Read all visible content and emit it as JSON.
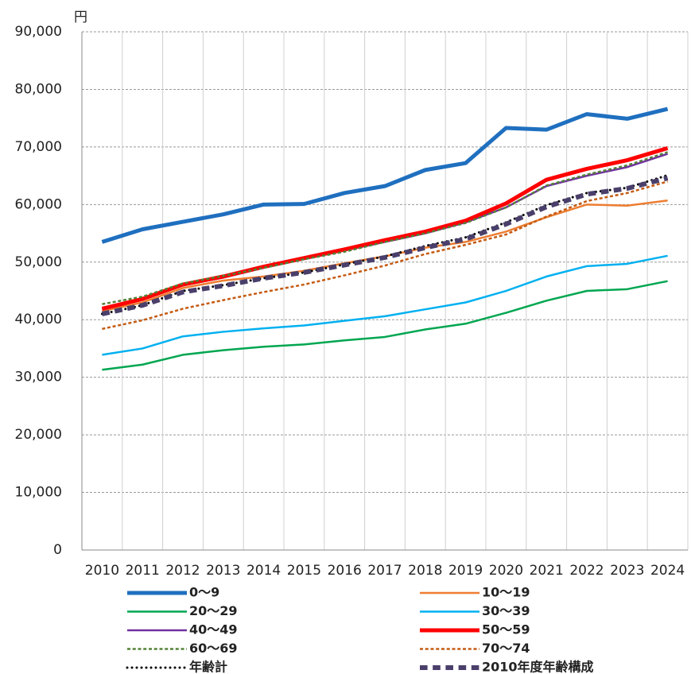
{
  "chart_data": {
    "type": "line",
    "y_label": "円",
    "categories": [
      "2010",
      "2011",
      "2012",
      "2013",
      "2014",
      "2015",
      "2016",
      "2017",
      "2018",
      "2019",
      "2020",
      "2021",
      "2022",
      "2023",
      "2024"
    ],
    "ylim": [
      0,
      90000
    ],
    "yticks": [
      0,
      {
        "value": 10000,
        "label": "10,000"
      },
      {
        "value": 20000,
        "label": "20,000"
      },
      {
        "value": 30000,
        "label": "30,000"
      },
      {
        "value": 40000,
        "label": "40,000"
      },
      {
        "value": 50000,
        "label": "50,000"
      },
      {
        "value": 60000,
        "label": "60,000"
      },
      {
        "value": 70000,
        "label": "70,000"
      },
      {
        "value": 80000,
        "label": "80,000"
      },
      {
        "value": 90000,
        "label": "90,000"
      }
    ],
    "grid": true,
    "series": [
      {
        "name": "0〜9",
        "color": "#1f6fbf",
        "line_width": 5,
        "dash": "solid",
        "values": [
          53500,
          55700,
          57000,
          58300,
          60000,
          60100,
          62000,
          63200,
          66000,
          67200,
          73300,
          73000,
          75700,
          74900,
          76600
        ]
      },
      {
        "name": "10〜19",
        "color": "#ed7d31",
        "line_width": 2.5,
        "dash": "solid",
        "values": [
          41500,
          43000,
          45500,
          46800,
          47500,
          48500,
          49800,
          51000,
          52500,
          53500,
          55300,
          57800,
          60000,
          59800,
          60700
        ]
      },
      {
        "name": "20〜29",
        "color": "#00a650",
        "line_width": 2.5,
        "dash": "solid",
        "values": [
          31300,
          32200,
          33900,
          34700,
          35300,
          35700,
          36400,
          37000,
          38300,
          39300,
          41200,
          43300,
          45000,
          45300,
          46700
        ]
      },
      {
        "name": "30〜39",
        "color": "#00b0f0",
        "line_width": 2.5,
        "dash": "solid",
        "values": [
          33900,
          35000,
          37100,
          37900,
          38500,
          39000,
          39800,
          40600,
          41800,
          43000,
          45000,
          47500,
          49300,
          49700,
          51100
        ]
      },
      {
        "name": "40〜49",
        "color": "#7030a0",
        "line_width": 2.5,
        "dash": "solid",
        "values": [
          41800,
          43500,
          46000,
          47300,
          49000,
          50500,
          52000,
          53500,
          55000,
          56900,
          59500,
          63200,
          65000,
          66500,
          68800
        ]
      },
      {
        "name": "50〜59",
        "color": "#ff0000",
        "line_width": 5,
        "dash": "solid",
        "values": [
          41900,
          43600,
          46100,
          47500,
          49200,
          50700,
          52200,
          53800,
          55300,
          57200,
          60200,
          64300,
          66200,
          67700,
          69800
        ]
      },
      {
        "name": "60〜69",
        "color": "#548235",
        "line_width": 2.5,
        "dash": "dashed",
        "values": [
          42700,
          44000,
          46300,
          47600,
          49000,
          50500,
          51800,
          53500,
          55000,
          56800,
          59500,
          63300,
          65200,
          66800,
          69100
        ]
      },
      {
        "name": "70〜74",
        "color": "#c55a11",
        "line_width": 2.5,
        "dash": "dashed",
        "values": [
          38400,
          39900,
          41900,
          43400,
          44800,
          46100,
          47700,
          49400,
          51400,
          53000,
          54800,
          57900,
          60600,
          62000,
          64000
        ]
      },
      {
        "name": "年齢計",
        "color": "#000000",
        "line_width": 3,
        "dash": "dotted",
        "values": [
          41000,
          42500,
          45000,
          46000,
          47200,
          48200,
          49600,
          51000,
          52800,
          54300,
          56900,
          59900,
          62000,
          62900,
          65100
        ]
      },
      {
        "name": "2010年度年齢構成",
        "color": "#4a3f6b",
        "line_width": 6,
        "dash": "dashed",
        "values": [
          41000,
          42500,
          44800,
          45900,
          47200,
          48200,
          49500,
          50800,
          52500,
          54000,
          56600,
          59600,
          61800,
          62800,
          64600
        ]
      }
    ]
  }
}
